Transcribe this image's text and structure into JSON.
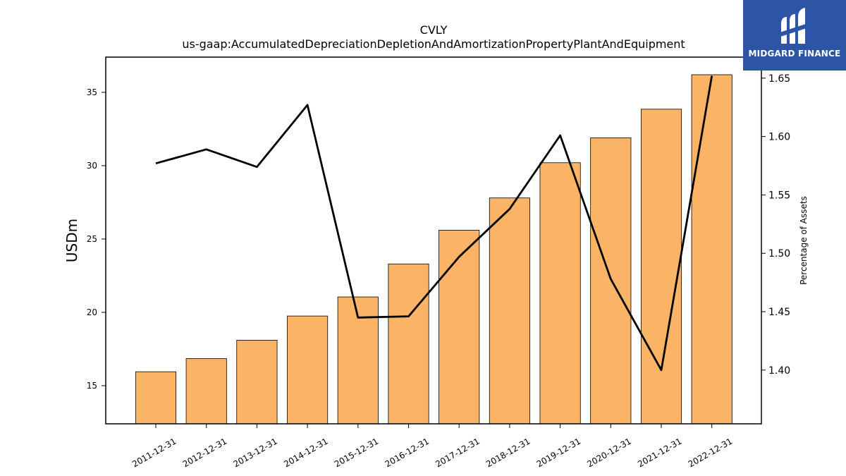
{
  "chart_data": {
    "type": "bar",
    "title": "CVLY",
    "subtitle": "us-gaap:AccumulatedDepreciationDepletionAndAmortizationPropertyPlantAndEquipment",
    "ylabel": "USDm",
    "y2label": "Percentage of Assets",
    "categories": [
      "2011-12-31",
      "2012-12-31",
      "2013-12-31",
      "2014-12-31",
      "2015-12-31",
      "2016-12-31",
      "2017-12-31",
      "2018-12-31",
      "2019-12-31",
      "2020-12-31",
      "2021-12-31",
      "2022-12-31"
    ],
    "series": [
      {
        "type": "bar",
        "axis": "left",
        "values": [
          15.95,
          16.85,
          18.1,
          19.75,
          21.05,
          23.3,
          25.6,
          27.8,
          30.2,
          31.9,
          33.85,
          36.2
        ]
      },
      {
        "type": "line",
        "axis": "right",
        "values": [
          1.577,
          1.589,
          1.574,
          1.627,
          1.445,
          1.446,
          1.497,
          1.538,
          1.601,
          1.478,
          1.4,
          1.652
        ]
      }
    ],
    "ylim": [
      12.4,
      37.4
    ],
    "y2lim": [
      1.354,
      1.668
    ],
    "yticks": [
      15,
      20,
      25,
      30,
      35
    ],
    "y2ticks": [
      1.4,
      1.45,
      1.5,
      1.55,
      1.6,
      1.65
    ],
    "grid": false,
    "legend": "none",
    "colors": {
      "bar": "#fbb465",
      "bar_edge": "#000000",
      "line": "#000000"
    }
  },
  "logo": {
    "text": "MIDGARD FINANCE",
    "bg": "#2d55a6"
  }
}
